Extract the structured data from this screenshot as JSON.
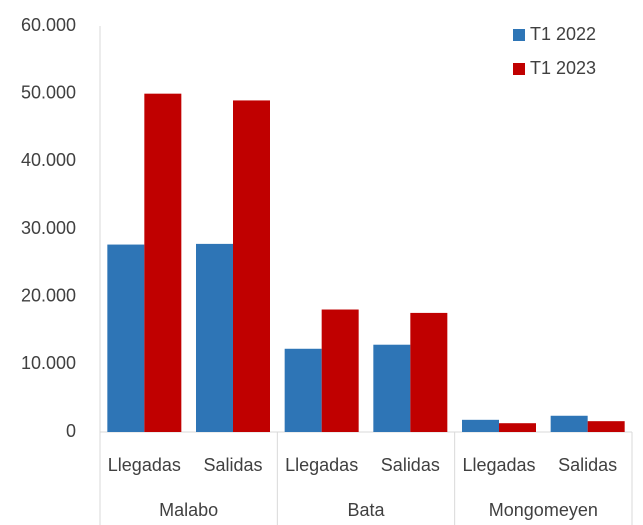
{
  "chart_data": {
    "type": "bar",
    "groups": [
      "Malabo",
      "Bata",
      "Mongomeyen"
    ],
    "categories": [
      "Llegadas",
      "Salidas",
      "Llegadas",
      "Salidas",
      "Llegadas",
      "Salidas"
    ],
    "series": [
      {
        "name": "T1 2022",
        "color": "#2e75b6",
        "values": [
          27700,
          27800,
          12300,
          12900,
          1800,
          2400
        ]
      },
      {
        "name": "T1 2023",
        "color": "#c00000",
        "values": [
          50000,
          49000,
          18100,
          17600,
          1300,
          1600
        ]
      }
    ],
    "ylim": [
      0,
      60000
    ],
    "yticks": [
      0,
      {
        "value": 10000,
        "label": "10.000"
      },
      {
        "value": 20000,
        "label": "20.000"
      },
      {
        "value": 30000,
        "label": "30.000"
      },
      {
        "value": 40000,
        "label": "40.000"
      },
      {
        "value": 50000,
        "label": "50.000"
      },
      {
        "value": 60000,
        "label": "60.000"
      }
    ],
    "grid": false,
    "legend": "top-right"
  }
}
